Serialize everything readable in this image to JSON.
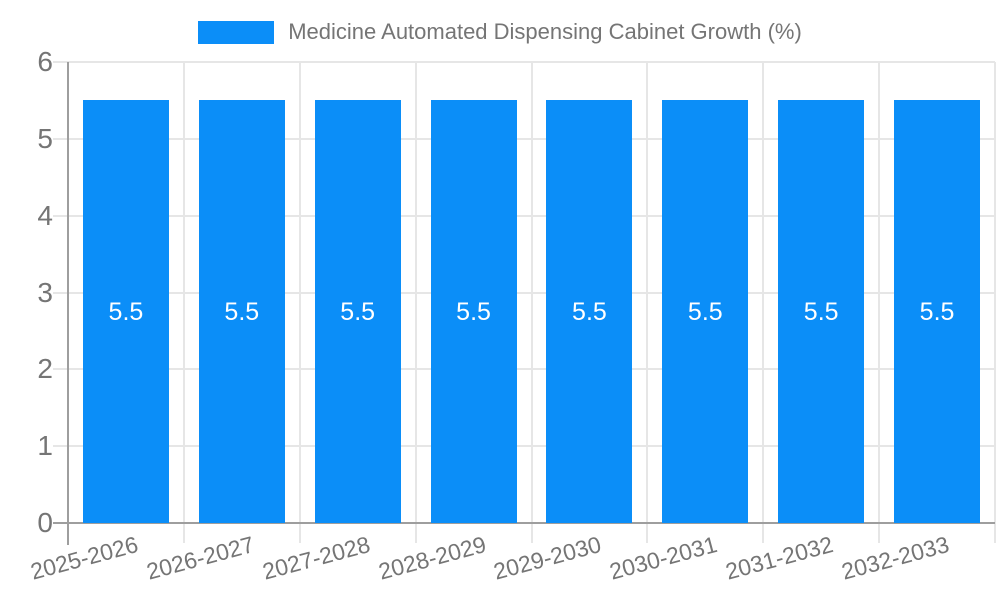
{
  "legend": {
    "label": "Medicine Automated Dispensing Cabinet Growth (%)"
  },
  "chart_data": {
    "type": "bar",
    "title": "Medicine Automated Dispensing Cabinet Growth (%)",
    "categories": [
      "2025-2026",
      "2026-2027",
      "2027-2028",
      "2028-2029",
      "2029-2030",
      "2030-2031",
      "2031-2032",
      "2032-2033"
    ],
    "series": [
      {
        "name": "Medicine Automated Dispensing Cabinet Growth (%)",
        "values": [
          5.5,
          5.5,
          5.5,
          5.5,
          5.5,
          5.5,
          5.5,
          5.5
        ],
        "value_labels": [
          "5.5",
          "5.5",
          "5.5",
          "5.5",
          "5.5",
          "5.5",
          "5.5",
          "5.5"
        ]
      }
    ],
    "xlabel": "",
    "ylabel": "",
    "ylim": [
      0,
      6
    ],
    "yticks": [
      0,
      1,
      2,
      3,
      4,
      5,
      6
    ],
    "grid": true,
    "legend_position": "top-center",
    "x_tick_rotation_deg": -15,
    "colors": {
      "bar": "#0b8ef8",
      "bar_label": "#ffffff",
      "axis": "#9e9e9e",
      "gridline": "#e6e6e6",
      "tick_text": "#757575",
      "legend_text": "#757575",
      "background": "#ffffff"
    }
  }
}
